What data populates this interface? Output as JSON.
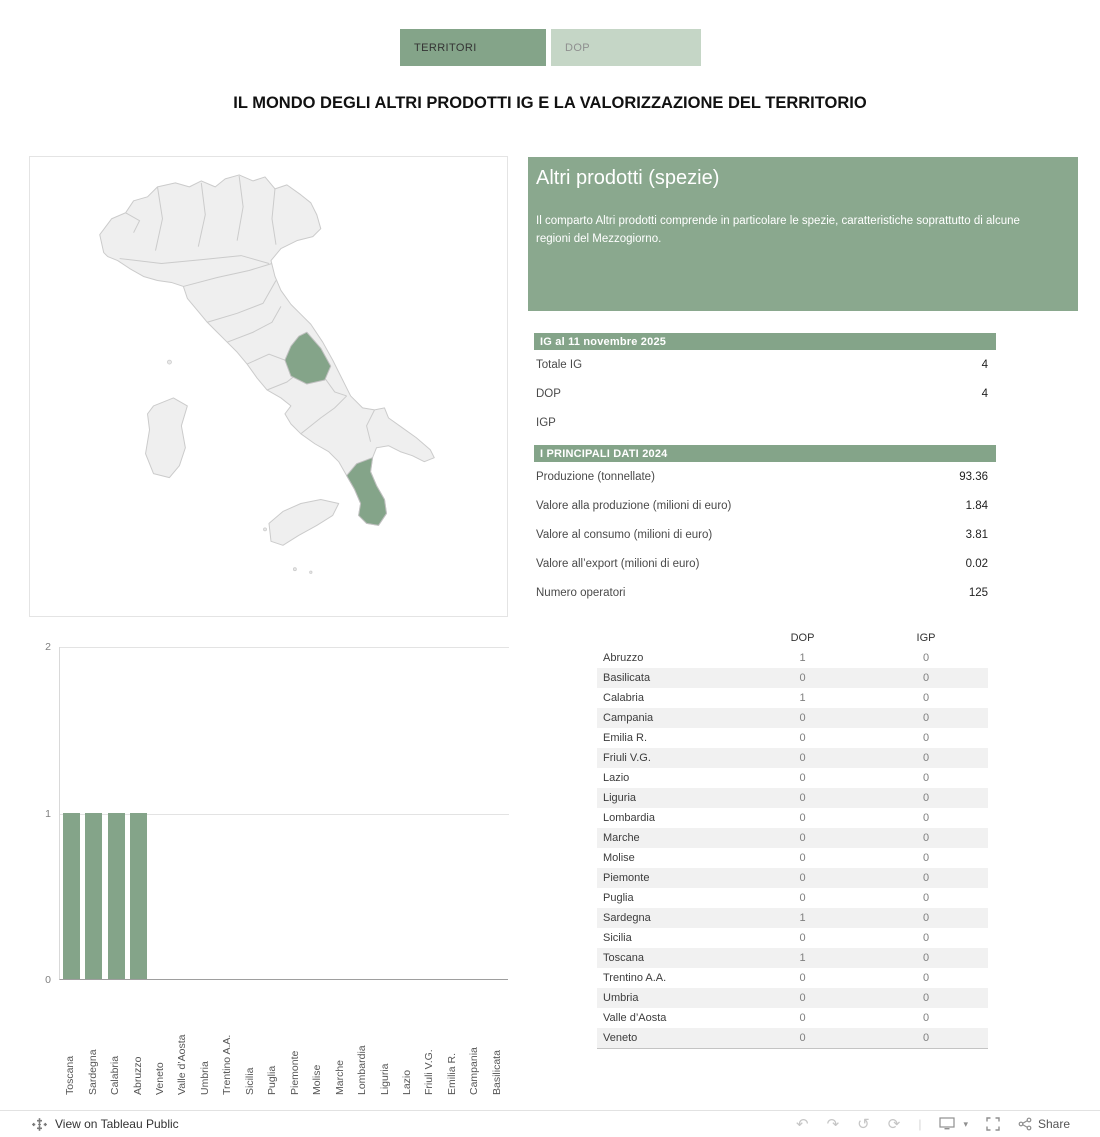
{
  "tabs": [
    {
      "label": "TERRITORI",
      "active": true
    },
    {
      "label": "DOP",
      "active": false
    }
  ],
  "title": "IL MONDO DEGLI ALTRI PRODOTTI IG E LA VALORIZZAZIONE DEL TERRITORIO",
  "info_panel": {
    "title": "Altri prodotti (spezie)",
    "body": "Il comparto Altri prodotti comprende in particolare le spezie, caratteristiche soprattutto di alcune regioni del Mezzogiorno."
  },
  "map": {
    "highlighted_regions": [
      "Abruzzo",
      "Calabria"
    ]
  },
  "ig_section": {
    "header": "IG al 11 novembre 2025",
    "rows": [
      {
        "label": "Totale IG",
        "value": "4"
      },
      {
        "label": "DOP",
        "value": "4"
      },
      {
        "label": "IGP",
        "value": ""
      }
    ]
  },
  "dati_section": {
    "header": "I PRINCIPALI DATI 2024",
    "rows": [
      {
        "label": "Produzione (tonnellate)",
        "value": "93.36"
      },
      {
        "label": "Valore alla produzione (milioni di euro)",
        "value": "1.84"
      },
      {
        "label": "Valore al consumo (milioni di euro)",
        "value": "3.81"
      },
      {
        "label": "Valore all’export (milioni di euro)",
        "value": "0.02"
      },
      {
        "label": "Numero operatori",
        "value": "125"
      }
    ]
  },
  "chart_data": [
    {
      "type": "bar",
      "title": "",
      "categories": [
        "Toscana",
        "Sardegna",
        "Calabria",
        "Abruzzo",
        "Veneto",
        "Valle d’Aosta",
        "Umbria",
        "Trentino A.A.",
        "Sicilia",
        "Puglia",
        "Piemonte",
        "Molise",
        "Marche",
        "Lombardia",
        "Liguria",
        "Lazio",
        "Friuli V.G.",
        "Emilia R.",
        "Campania",
        "Basilicata"
      ],
      "values": [
        1,
        1,
        1,
        1,
        0,
        0,
        0,
        0,
        0,
        0,
        0,
        0,
        0,
        0,
        0,
        0,
        0,
        0,
        0,
        0
      ],
      "ylim": [
        0,
        2
      ],
      "yticks": [
        0,
        1,
        2
      ],
      "grid": true,
      "legend": "none",
      "bar_color": "#84a489"
    },
    {
      "type": "table",
      "columns": [
        "DOP",
        "IGP"
      ],
      "rows": [
        [
          "Abruzzo",
          "1",
          "0"
        ],
        [
          "Basilicata",
          "0",
          "0"
        ],
        [
          "Calabria",
          "1",
          "0"
        ],
        [
          "Campania",
          "0",
          "0"
        ],
        [
          "Emilia R.",
          "0",
          "0"
        ],
        [
          "Friuli V.G.",
          "0",
          "0"
        ],
        [
          "Lazio",
          "0",
          "0"
        ],
        [
          "Liguria",
          "0",
          "0"
        ],
        [
          "Lombardia",
          "0",
          "0"
        ],
        [
          "Marche",
          "0",
          "0"
        ],
        [
          "Molise",
          "0",
          "0"
        ],
        [
          "Piemonte",
          "0",
          "0"
        ],
        [
          "Puglia",
          "0",
          "0"
        ],
        [
          "Sardegna",
          "1",
          "0"
        ],
        [
          "Sicilia",
          "0",
          "0"
        ],
        [
          "Toscana",
          "1",
          "0"
        ],
        [
          "Trentino A.A.",
          "0",
          "0"
        ],
        [
          "Umbria",
          "0",
          "0"
        ],
        [
          "Valle d’Aosta",
          "0",
          "0"
        ],
        [
          "Veneto",
          "0",
          "0"
        ]
      ]
    }
  ],
  "footer": {
    "view_label": "View on Tableau Public",
    "share_label": "Share"
  },
  "icons": {
    "undo": "↶",
    "redo": "↷",
    "revert": "↺",
    "refresh": "⟳",
    "separator": "|",
    "caret": "▾"
  },
  "colors": {
    "accent": "#84a489",
    "panel": "#8aa88e",
    "tab_inactive_bg": "#c5d6c6",
    "zebra": "#f1f1f1",
    "map_highlight": "#84a489",
    "map_default": "#efefef"
  }
}
